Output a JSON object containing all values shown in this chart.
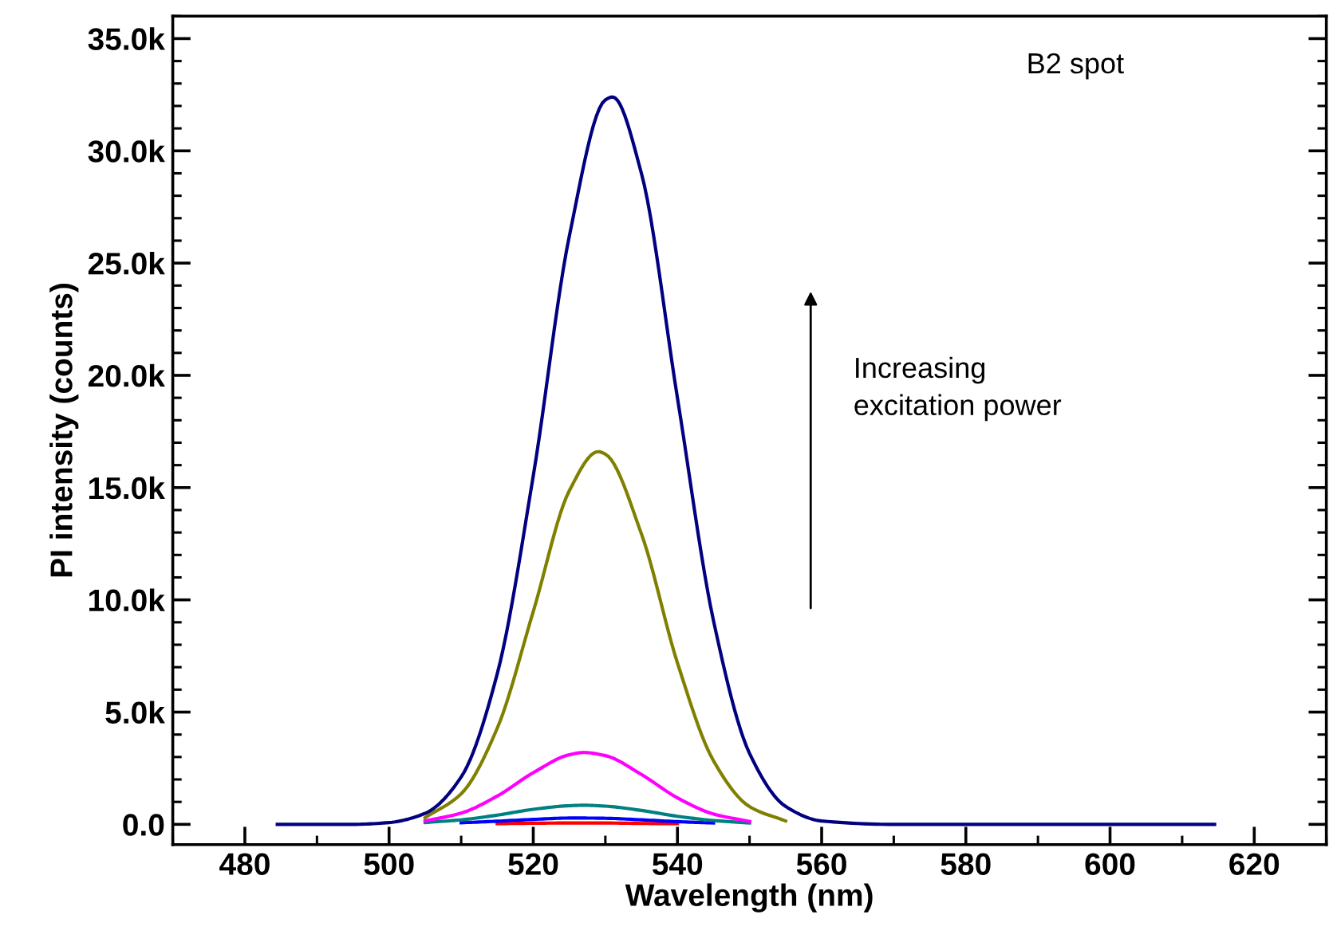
{
  "chart_data": {
    "type": "line",
    "xlabel": "Wavelength (nm)",
    "ylabel": "PI intensity (counts)",
    "xlim": [
      470,
      630
    ],
    "xticks": [
      480,
      500,
      520,
      540,
      560,
      580,
      600,
      620
    ],
    "ylim": [
      -900,
      36000
    ],
    "yticks": [
      {
        "value": 0,
        "label": "0.0"
      },
      {
        "value": 5000,
        "label": "5.0k"
      },
      {
        "value": 10000,
        "label": "10.0k"
      },
      {
        "value": 15000,
        "label": "15.0k"
      },
      {
        "value": 20000,
        "label": "20.0k"
      },
      {
        "value": 25000,
        "label": "25.0k"
      },
      {
        "value": 30000,
        "label": "30.0k"
      },
      {
        "value": 35000,
        "label": "35.0k"
      }
    ],
    "grid": false,
    "legend": false,
    "marker": "none",
    "line_style": "solid",
    "annotations": [
      "B2 spot",
      "Increasing\nexcitation power"
    ],
    "series": [
      {
        "color": "#ff0000",
        "x": [
          515,
          520,
          525,
          527,
          530,
          535,
          540
        ],
        "values": [
          30,
          50,
          60,
          60,
          60,
          40,
          30
        ]
      },
      {
        "color": "#0000ff",
        "x": [
          510,
          515,
          520,
          525,
          527,
          530,
          535,
          540,
          545
        ],
        "values": [
          70,
          140,
          220,
          280,
          280,
          270,
          200,
          120,
          60
        ]
      },
      {
        "color": "#008080",
        "x": [
          505,
          510,
          515,
          520,
          525,
          527,
          530,
          535,
          540,
          545,
          550
        ],
        "values": [
          80,
          200,
          410,
          670,
          830,
          850,
          810,
          620,
          360,
          170,
          60
        ]
      },
      {
        "color": "#ff00ff",
        "x": [
          505,
          510,
          515,
          520,
          525,
          527,
          530,
          535,
          540,
          545,
          550
        ],
        "values": [
          150,
          500,
          1260,
          2300,
          3100,
          3200,
          3060,
          2220,
          1180,
          460,
          130
        ]
      },
      {
        "color": "#808000",
        "x": [
          505,
          510,
          515,
          520,
          525,
          529,
          530,
          535,
          540,
          545,
          550,
          555
        ],
        "values": [
          300,
          1360,
          4280,
          9480,
          14860,
          16600,
          16490,
          12940,
          7190,
          2830,
          790,
          150
        ]
      },
      {
        "color": "#000080",
        "x": [
          484.5,
          495,
          500,
          505,
          510,
          515,
          520,
          525,
          530,
          531,
          535,
          540,
          545,
          550,
          555,
          560,
          570,
          590,
          614.5
        ],
        "values": [
          0,
          0,
          80,
          490,
          2110,
          6700,
          15520,
          26200,
          32270,
          32400,
          29000,
          18990,
          9070,
          3160,
          800,
          150,
          0,
          0,
          0
        ]
      }
    ]
  }
}
